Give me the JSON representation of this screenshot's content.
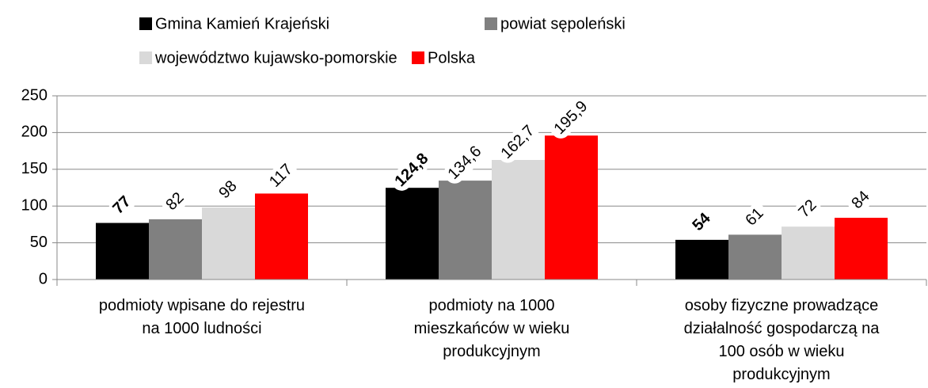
{
  "chart_data": {
    "type": "bar",
    "categories": [
      "podmioty wpisane do rejestru\nna 1000 ludności",
      "podmioty na 1000\nmieszkańców w wieku\nprodukcyjnym",
      "osoby fizyczne prowadzące\ndziałalność gospodarczą na\n100 osób w wieku\nprodukcyjnym"
    ],
    "series": [
      {
        "name": "Gmina Kamień Krajeński",
        "color": "#000000",
        "values": [
          77,
          124.8,
          54
        ],
        "value_labels": [
          "77",
          "124,8",
          "54"
        ]
      },
      {
        "name": "powiat sępoleński",
        "color": "#808080",
        "values": [
          82,
          134.6,
          61
        ],
        "value_labels": [
          "82",
          "134,6",
          "61"
        ]
      },
      {
        "name": "województwo kujawsko-pomorskie",
        "color": "#d9d9d9",
        "values": [
          98,
          162.7,
          72
        ],
        "value_labels": [
          "98",
          "162,7",
          "72"
        ]
      },
      {
        "name": "Polska",
        "color": "#ff0000",
        "values": [
          117,
          195.9,
          84
        ],
        "value_labels": [
          "117",
          "195,9",
          "84"
        ]
      }
    ],
    "ylim": [
      0,
      250
    ],
    "yticks": [
      0,
      50,
      100,
      150,
      200,
      250
    ],
    "grid": true,
    "legend": "top"
  }
}
